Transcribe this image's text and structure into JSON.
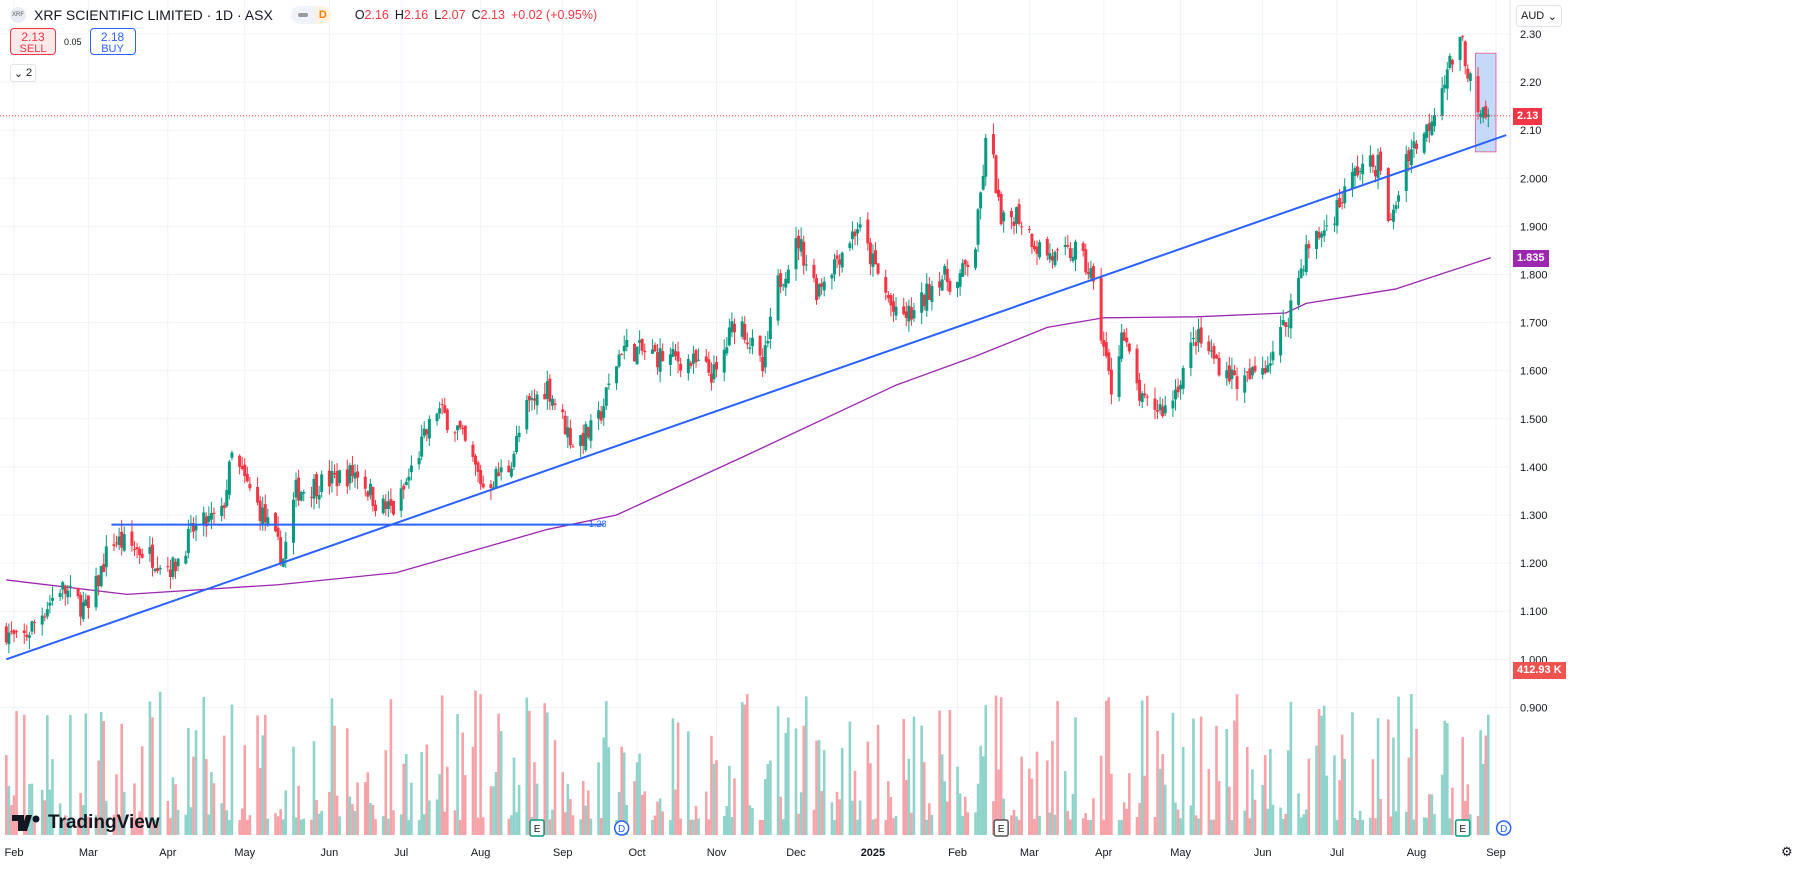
{
  "header": {
    "logo_text": "XRF",
    "title": "XRF SCIENTIFIC LIMITED · 1D · ASX",
    "interval_badge": "D",
    "ohlc": [
      {
        "key": "O",
        "value": "2.16"
      },
      {
        "key": "H",
        "value": "2.16"
      },
      {
        "key": "L",
        "value": "2.07"
      },
      {
        "key": "C",
        "value": "2.13"
      }
    ],
    "change": "+0.02 (+0.95%)"
  },
  "trade": {
    "sell_price": "2.13",
    "sell_label": "SELL",
    "spread": "0.05",
    "buy_price": "2.18",
    "buy_label": "BUY"
  },
  "indicators_toggle": {
    "count": "2",
    "icon": "chevron-down-icon"
  },
  "currency": "AUD",
  "branding": "TradingView",
  "colors": {
    "up": "#089981",
    "down": "#f23645",
    "up_volume": "#8fd3cb",
    "down_volume": "#f5a3a8",
    "trendline": "#2962ff",
    "moving_average": "#9c27b0",
    "highlight_box": "#bbd3f7"
  },
  "chart_data": {
    "type": "candlestick",
    "xlim": [
      "2024-01-29",
      "2025-09-05"
    ],
    "ylim": [
      0.83,
      2.37
    ],
    "grid": true,
    "x_tick_labels": [
      "Feb",
      "Mar",
      "Apr",
      "May",
      "Jun",
      "Jul",
      "Aug",
      "Sep",
      "Oct",
      "Nov",
      "Dec",
      "2025",
      "Feb",
      "Mar",
      "Apr",
      "May",
      "Jun",
      "Jul",
      "Aug",
      "Sep"
    ],
    "x_tick_dates": [
      "2024-02-01",
      "2024-03-01",
      "2024-04-01",
      "2024-05-01",
      "2024-06-03",
      "2024-07-01",
      "2024-08-01",
      "2024-09-02",
      "2024-10-01",
      "2024-11-01",
      "2024-12-02",
      "2025-01-01",
      "2025-02-03",
      "2025-03-03",
      "2025-04-01",
      "2025-05-01",
      "2025-06-02",
      "2025-07-01",
      "2025-08-01",
      "2025-09-01"
    ],
    "y_ticks": [
      2.3,
      2.2,
      2.1,
      2.0,
      1.9,
      1.8,
      1.7,
      1.6,
      1.5,
      1.4,
      1.3,
      1.2,
      1.1,
      1.0,
      0.9
    ],
    "y_tick_labels": [
      "2.30",
      "2.20",
      "2.10",
      "2.000",
      "1.900",
      "1.800",
      "1.700",
      "1.600",
      "1.500",
      "1.400",
      "1.300",
      "1.200",
      "1.100",
      "1.000",
      "0.900"
    ],
    "price_path": [
      [
        "2024-01-29",
        1.06
      ],
      [
        "2024-02-03",
        1.03
      ],
      [
        "2024-02-19",
        1.15
      ],
      [
        "2024-03-01",
        1.1
      ],
      [
        "2024-03-10",
        1.25
      ],
      [
        "2024-03-24",
        1.22
      ],
      [
        "2024-04-03",
        1.19
      ],
      [
        "2024-04-11",
        1.27
      ],
      [
        "2024-04-22",
        1.3
      ],
      [
        "2024-04-26",
        1.42
      ],
      [
        "2024-05-08",
        1.3
      ],
      [
        "2024-05-16",
        1.21
      ],
      [
        "2024-05-21",
        1.35
      ],
      [
        "2024-06-02",
        1.37
      ],
      [
        "2024-06-14",
        1.39
      ],
      [
        "2024-06-22",
        1.32
      ],
      [
        "2024-06-29",
        1.31
      ],
      [
        "2024-07-07",
        1.42
      ],
      [
        "2024-07-15",
        1.52
      ],
      [
        "2024-07-23",
        1.48
      ],
      [
        "2024-08-02",
        1.36
      ],
      [
        "2024-08-12",
        1.4
      ],
      [
        "2024-08-19",
        1.52
      ],
      [
        "2024-08-27",
        1.57
      ],
      [
        "2024-09-06",
        1.45
      ],
      [
        "2024-09-15",
        1.48
      ],
      [
        "2024-09-25",
        1.65
      ],
      [
        "2024-10-09",
        1.63
      ],
      [
        "2024-10-21",
        1.62
      ],
      [
        "2024-11-01",
        1.59
      ],
      [
        "2024-11-09",
        1.72
      ],
      [
        "2024-11-19",
        1.6
      ],
      [
        "2024-11-25",
        1.78
      ],
      [
        "2024-12-03",
        1.87
      ],
      [
        "2024-12-10",
        1.77
      ],
      [
        "2024-12-26",
        1.9
      ],
      [
        "2025-01-10",
        1.71
      ],
      [
        "2025-01-18",
        1.72
      ],
      [
        "2025-01-26",
        1.8
      ],
      [
        "2025-02-03",
        1.78
      ],
      [
        "2025-02-10",
        1.86
      ],
      [
        "2025-02-15",
        2.12
      ],
      [
        "2025-02-20",
        1.9
      ],
      [
        "2025-02-26",
        1.93
      ],
      [
        "2025-03-06",
        1.86
      ],
      [
        "2025-03-14",
        1.83
      ],
      [
        "2025-03-21",
        1.85
      ],
      [
        "2025-03-27",
        1.8
      ],
      [
        "2025-04-01",
        1.65
      ],
      [
        "2025-04-04",
        1.56
      ],
      [
        "2025-04-08",
        1.68
      ],
      [
        "2025-04-16",
        1.53
      ],
      [
        "2025-04-26",
        1.52
      ],
      [
        "2025-05-07",
        1.67
      ],
      [
        "2025-05-15",
        1.62
      ],
      [
        "2025-05-25",
        1.57
      ],
      [
        "2025-06-04",
        1.62
      ],
      [
        "2025-06-11",
        1.7
      ],
      [
        "2025-06-19",
        1.85
      ],
      [
        "2025-06-27",
        1.9
      ],
      [
        "2025-07-09",
        2.02
      ],
      [
        "2025-07-17",
        2.03
      ],
      [
        "2025-07-22",
        1.9
      ],
      [
        "2025-07-28",
        2.05
      ],
      [
        "2025-08-05",
        2.1
      ],
      [
        "2025-08-13",
        2.23
      ],
      [
        "2025-08-19",
        2.28
      ],
      [
        "2025-08-25",
        2.12
      ],
      [
        "2025-08-30",
        2.13
      ]
    ],
    "moving_average": [
      [
        "2024-01-29",
        1.165
      ],
      [
        "2024-03-16",
        1.135
      ],
      [
        "2024-05-14",
        1.155
      ],
      [
        "2024-06-29",
        1.18
      ],
      [
        "2024-08-27",
        1.27
      ],
      [
        "2024-09-23",
        1.3
      ],
      [
        "2024-11-13",
        1.425
      ],
      [
        "2025-01-10",
        1.57
      ],
      [
        "2025-02-10",
        1.63
      ],
      [
        "2025-03-10",
        1.69
      ],
      [
        "2025-04-01",
        1.71
      ],
      [
        "2025-05-07",
        1.712
      ],
      [
        "2025-06-11",
        1.72
      ],
      [
        "2025-06-19",
        1.74
      ],
      [
        "2025-07-24",
        1.77
      ],
      [
        "2025-08-30",
        1.835
      ]
    ],
    "trendline": [
      [
        "2024-01-29",
        1.0
      ],
      [
        "2025-09-05",
        2.09
      ]
    ],
    "horizontal_line": {
      "from": "2024-03-10",
      "to": "2024-09-18",
      "value": 1.28,
      "label": "1.28"
    },
    "highlight_box": {
      "from": "2025-08-24",
      "to": "2025-09-01",
      "low": 2.055,
      "high": 2.26
    },
    "last_price": {
      "value": 2.13,
      "label": "2.13"
    },
    "moving_average_last": {
      "value": 1.835,
      "label": "1.835"
    },
    "last_volume_label": "412.93 K",
    "event_markers": [
      {
        "date": "2024-08-23",
        "type": "E"
      },
      {
        "date": "2024-09-25",
        "type": "D"
      },
      {
        "date": "2025-02-20",
        "type": "E"
      },
      {
        "date": "2025-08-19",
        "type": "E"
      },
      {
        "date": "2025-09-04",
        "type": "D"
      }
    ]
  }
}
